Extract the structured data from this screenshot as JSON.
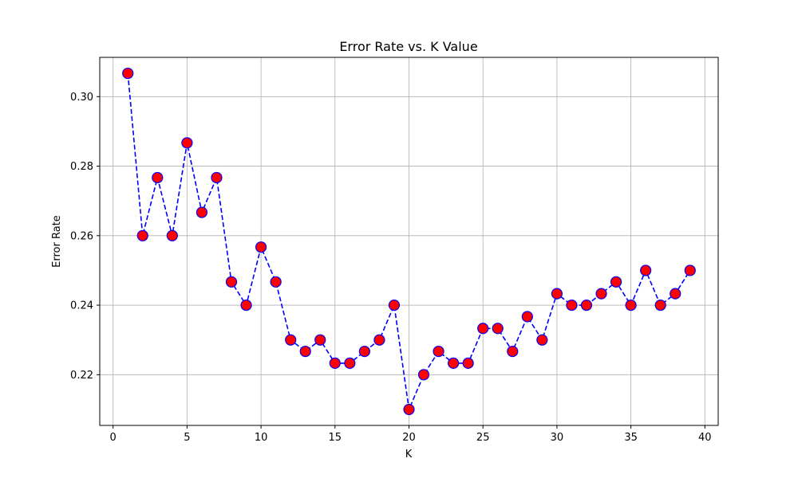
{
  "chart_data": {
    "type": "line",
    "title": "Error Rate vs. K Value",
    "xlabel": "K",
    "ylabel": "Error Rate",
    "xlim": [
      -0.9,
      40.9
    ],
    "ylim": [
      0.2054,
      0.3113
    ],
    "xticks": [
      0,
      5,
      10,
      15,
      20,
      25,
      30,
      35,
      40
    ],
    "xtick_labels": [
      "0",
      "5",
      "10",
      "15",
      "20",
      "25",
      "30",
      "35",
      "40"
    ],
    "yticks": [
      0.22,
      0.24,
      0.26,
      0.28,
      0.3
    ],
    "ytick_labels": [
      "0.22",
      "0.24",
      "0.26",
      "0.28",
      "0.30"
    ],
    "grid": true,
    "series": [
      {
        "line_color": "#0000ff",
        "marker_face": "#ff0000",
        "marker_edge": "#0000ff",
        "line_style": "dashed",
        "x": [
          1,
          2,
          3,
          4,
          5,
          6,
          7,
          8,
          9,
          10,
          11,
          12,
          13,
          14,
          15,
          16,
          17,
          18,
          19,
          20,
          21,
          22,
          23,
          24,
          25,
          26,
          27,
          28,
          29,
          30,
          31,
          32,
          33,
          34,
          35,
          36,
          37,
          38,
          39
        ],
        "y": [
          0.3067,
          0.26,
          0.2767,
          0.26,
          0.2867,
          0.2667,
          0.2767,
          0.2467,
          0.24,
          0.2567,
          0.2467,
          0.23,
          0.2267,
          0.23,
          0.2233,
          0.2233,
          0.2267,
          0.23,
          0.24,
          0.21,
          0.22,
          0.2267,
          0.2233,
          0.2233,
          0.2333,
          0.2333,
          0.2267,
          0.2367,
          0.23,
          0.2433,
          0.24,
          0.24,
          0.2433,
          0.2467,
          0.24,
          0.25,
          0.24,
          0.2433,
          0.25
        ]
      }
    ]
  }
}
